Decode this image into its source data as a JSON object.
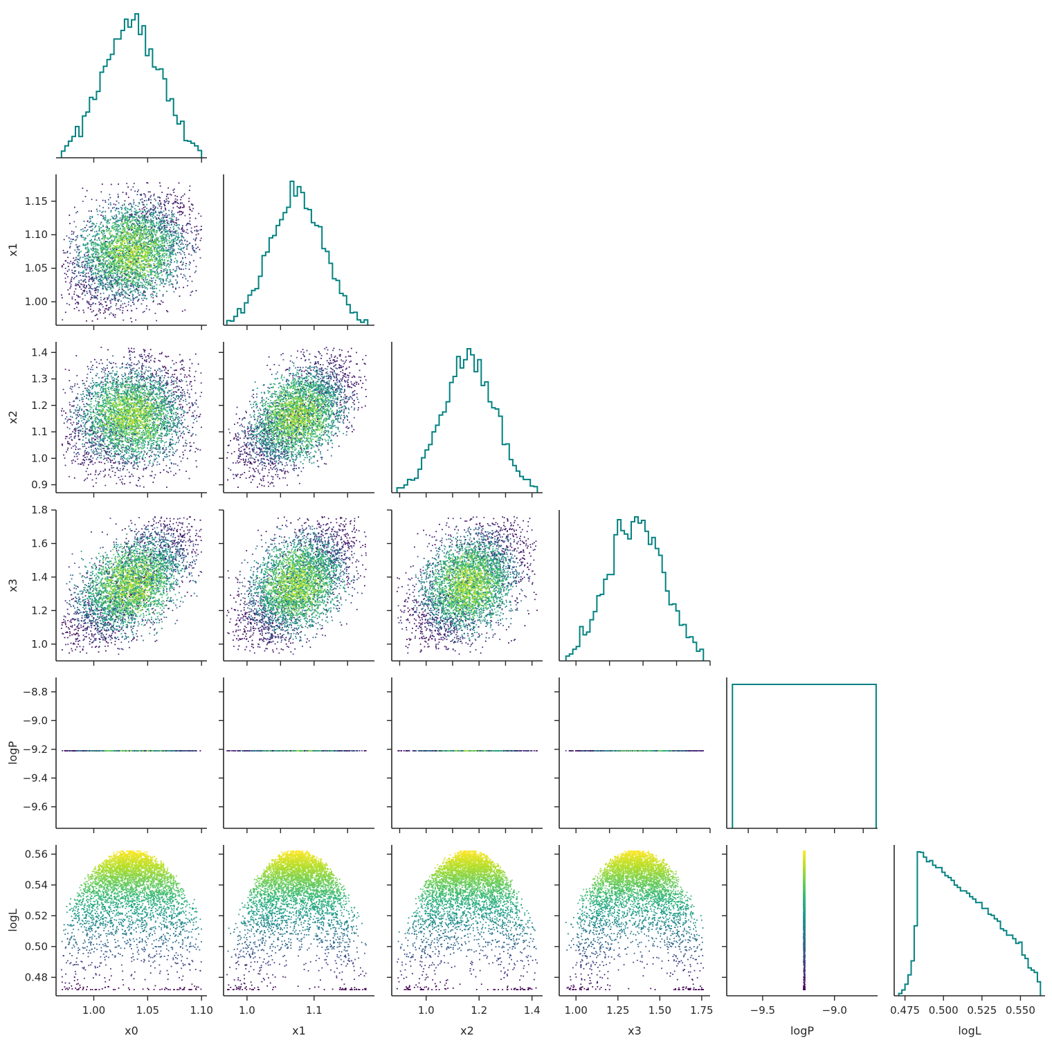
{
  "chart_data": {
    "type": "corner",
    "variables": [
      "x0",
      "x1",
      "x2",
      "x3",
      "logP",
      "logL"
    ],
    "labels": [
      "x0",
      "x1",
      "x2",
      "x3",
      "logP",
      "logL"
    ],
    "ranges": [
      [
        0.965,
        1.105
      ],
      [
        0.965,
        1.19
      ],
      [
        0.87,
        1.44
      ],
      [
        0.9,
        1.8
      ],
      [
        -9.75,
        -8.7
      ],
      [
        0.468,
        0.566
      ]
    ],
    "ticks": {
      "x0": [
        1.0,
        1.05,
        1.1
      ],
      "x1": [
        1.0,
        1.05,
        1.1,
        1.15
      ],
      "x1_bottom": [
        1.0,
        1.1
      ],
      "x2": [
        0.9,
        1.0,
        1.1,
        1.2,
        1.3,
        1.4
      ],
      "x2_bottom": [
        1.0,
        1.2,
        1.4
      ],
      "x3": [
        1.0,
        1.2,
        1.4,
        1.6,
        1.8
      ],
      "x3_bottom": [
        1.0,
        1.25,
        1.5,
        1.75
      ],
      "logP": [
        -9.6,
        -9.4,
        -9.2,
        -9.0,
        -8.8
      ],
      "logP_bottom": [
        -9.5,
        -9.0
      ],
      "logL": [
        0.48,
        0.5,
        0.52,
        0.54,
        0.56
      ],
      "logL_bottom": [
        0.475,
        0.5,
        0.525,
        0.55
      ]
    },
    "tick_labels": {
      "x0": [
        "1.00",
        "1.05",
        "1.10"
      ],
      "x1": [
        "1.00",
        "1.05",
        "1.10",
        "1.15"
      ],
      "x1_bottom": [
        "1.0",
        "1.1"
      ],
      "x2": [
        "0.9",
        "1.0",
        "1.1",
        "1.2",
        "1.3",
        "1.4"
      ],
      "x2_bottom": [
        "1.0",
        "1.2",
        "1.4"
      ],
      "x3": [
        "1.0",
        "1.2",
        "1.4",
        "1.6",
        "1.8"
      ],
      "x3_bottom": [
        "1.00",
        "1.25",
        "1.50",
        "1.75"
      ],
      "logP": [
        "−9.6",
        "−9.4",
        "−9.2",
        "−9.0",
        "−8.8"
      ],
      "logP_bottom": [
        "−9.5",
        "−9.0"
      ],
      "logL": [
        "0.48",
        "0.50",
        "0.52",
        "0.54",
        "0.56"
      ],
      "logL_bottom": [
        "0.475",
        "0.500",
        "0.525",
        "0.550"
      ]
    },
    "posterior": {
      "means": [
        1.035,
        1.075,
        1.16,
        1.36
      ],
      "sigmas": [
        0.028,
        0.04,
        0.1,
        0.17
      ],
      "correlations": [
        [
          1.0,
          0.3,
          0.15,
          0.6
        ],
        [
          0.3,
          1.0,
          0.55,
          0.5
        ],
        [
          0.15,
          0.55,
          1.0,
          0.4
        ],
        [
          0.6,
          0.5,
          0.4,
          1.0
        ]
      ],
      "bounds": [
        [
          0.97,
          1.1
        ],
        [
          0.97,
          1.18
        ],
        [
          0.89,
          1.42
        ],
        [
          0.94,
          1.76
        ]
      ],
      "logP_constant": -9.21,
      "logL_range": [
        0.472,
        0.562
      ]
    },
    "logP_histogram": {
      "edges": [
        -9.71,
        -8.71
      ],
      "height": 1
    },
    "logL_histogram": {
      "edges": [
        0.471,
        0.473,
        0.475,
        0.477,
        0.479,
        0.481,
        0.483,
        0.485,
        0.487,
        0.489,
        0.491,
        0.493,
        0.495,
        0.497,
        0.499,
        0.501,
        0.503,
        0.505,
        0.507,
        0.509,
        0.511,
        0.513,
        0.515,
        0.517,
        0.519,
        0.521,
        0.523,
        0.525,
        0.527,
        0.529,
        0.531,
        0.533,
        0.535,
        0.537,
        0.539,
        0.541,
        0.543,
        0.545,
        0.547,
        0.549,
        0.551,
        0.553,
        0.555,
        0.557,
        0.559,
        0.561,
        0.563
      ],
      "counts": [
        4,
        10,
        20,
        36,
        60,
        120,
        247,
        246,
        238,
        230,
        232,
        224,
        220,
        220,
        212,
        206,
        203,
        198,
        190,
        186,
        180,
        180,
        176,
        170,
        166,
        160,
        160,
        150,
        150,
        140,
        138,
        132,
        128,
        115,
        112,
        104,
        104,
        98,
        90,
        92,
        70,
        64,
        48,
        44,
        40,
        24
      ]
    },
    "colors": {
      "histogram": "#008080",
      "colormap": [
        "#440154",
        "#482878",
        "#3e4989",
        "#31688e",
        "#26828e",
        "#1f9e89",
        "#35b779",
        "#6ece58",
        "#b5de2b",
        "#fde725"
      ]
    }
  }
}
